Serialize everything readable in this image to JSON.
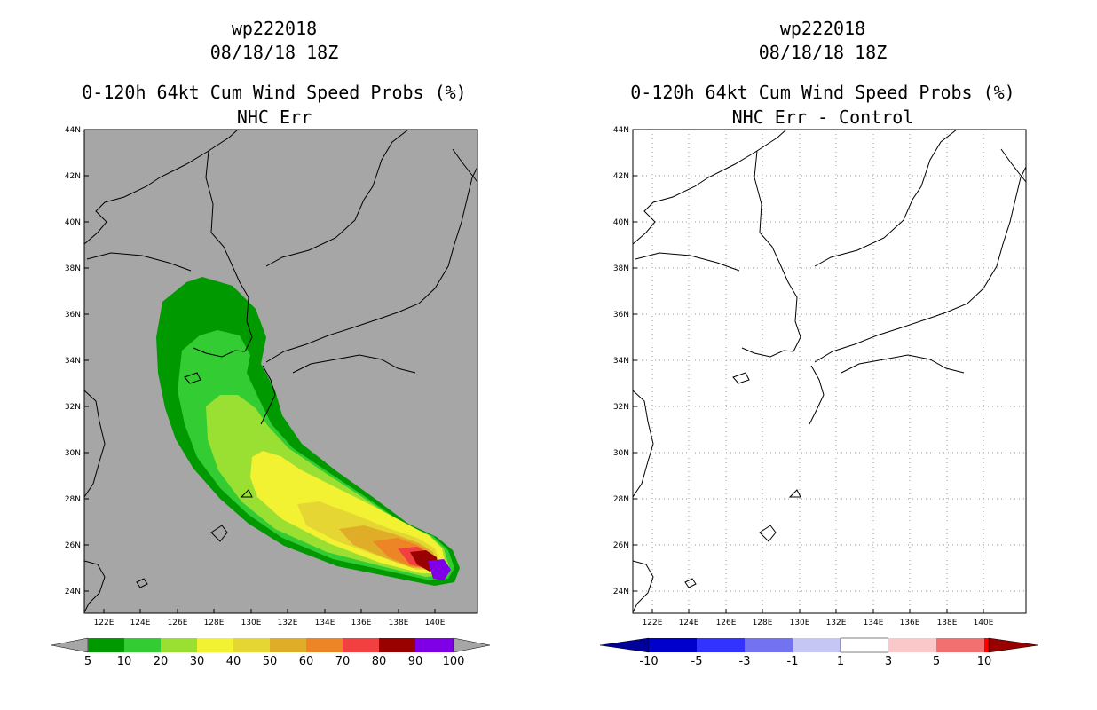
{
  "panels": [
    {
      "storm_id": "wp222018",
      "datetime": "08/18/18 18Z",
      "product": "0-120h 64kt Cum Wind Speed Probs (%)",
      "subtitle": "NHC Err",
      "colorbar": {
        "colors": [
          "#009900",
          "#33cc33",
          "#99e033",
          "#f2f233",
          "#e6d633",
          "#e0ad29",
          "#ed8526",
          "#f24040",
          "#990000",
          "#7f00e6"
        ],
        "end_colors": [
          "#a6a6a6",
          "#a6a6a6"
        ],
        "labels": [
          "5",
          "10",
          "20",
          "30",
          "40",
          "50",
          "60",
          "70",
          "80",
          "90",
          "100"
        ]
      }
    },
    {
      "storm_id": "wp222018",
      "datetime": "08/18/18 18Z",
      "product": "0-120h 64kt Cum Wind Speed Probs (%)",
      "subtitle": "NHC Err - Control",
      "colorbar": {
        "colors": [
          "#0000cc",
          "#3333ff",
          "#7373f2",
          "#c6c6f5",
          "#ffffff",
          "#fac8c8",
          "#f27070",
          "#ff0000"
        ],
        "end_colors": [
          "#00009a",
          "#990000"
        ],
        "labels": [
          "-10",
          "-5",
          "-3",
          "-1",
          "1",
          "3",
          "5",
          "10"
        ]
      }
    }
  ],
  "map": {
    "lon_labels": [
      "122E",
      "124E",
      "126E",
      "128E",
      "130E",
      "132E",
      "134E",
      "136E",
      "138E",
      "140E"
    ],
    "lat_labels": [
      "44N",
      "42N",
      "40N",
      "38N",
      "36N",
      "34N",
      "32N",
      "30N",
      "28N",
      "26N",
      "24N"
    ],
    "background_left": "#a6a6a6",
    "background_right": "#ffffff"
  }
}
